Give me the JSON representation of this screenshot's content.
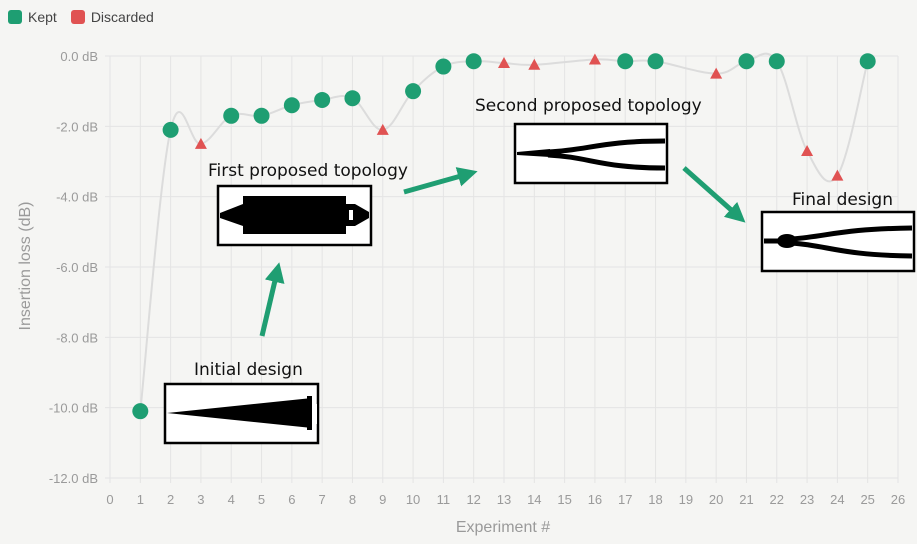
{
  "legend": {
    "kept_label": "Kept",
    "discarded_label": "Discarded"
  },
  "colors": {
    "kept": "#1e9e72",
    "discarded": "#e05252",
    "line": "#dcdcdc",
    "arrow": "#1f9e72",
    "grid": "#e4e4e4",
    "axis_text": "#9a9a9a"
  },
  "chart_data": {
    "type": "scatter",
    "xlabel": "Experiment #",
    "ylabel": "Insertion loss (dB)",
    "xlim": [
      0,
      26
    ],
    "ylim": [
      -12,
      0
    ],
    "x_ticks": [
      "0",
      "1",
      "2",
      "3",
      "4",
      "5",
      "6",
      "7",
      "8",
      "9",
      "10",
      "11",
      "12",
      "13",
      "14",
      "15",
      "16",
      "17",
      "18",
      "19",
      "20",
      "21",
      "22",
      "23",
      "24",
      "25",
      "26"
    ],
    "y_ticks": [
      "0.0 dB",
      "-2.0 dB",
      "-4.0 dB",
      "-6.0 dB",
      "-8.0 dB",
      "-10.0 dB",
      "-12.0 dB"
    ],
    "series": [
      {
        "name": "Kept",
        "marker": "circle",
        "points": [
          [
            1,
            -10.1
          ],
          [
            2,
            -2.1
          ],
          [
            4,
            -1.7
          ],
          [
            5,
            -1.7
          ],
          [
            6,
            -1.4
          ],
          [
            7,
            -1.25
          ],
          [
            8,
            -1.2
          ],
          [
            10,
            -1.0
          ],
          [
            11,
            -0.3
          ],
          [
            12,
            -0.15
          ],
          [
            17,
            -0.15
          ],
          [
            18,
            -0.15
          ],
          [
            21,
            -0.15
          ],
          [
            22,
            -0.15
          ],
          [
            25,
            -0.15
          ]
        ]
      },
      {
        "name": "Discarded",
        "marker": "triangle",
        "points": [
          [
            3,
            -2.5
          ],
          [
            9,
            -2.1
          ],
          [
            13,
            -0.2
          ],
          [
            14,
            -0.25
          ],
          [
            16,
            -0.1
          ],
          [
            20,
            -0.5
          ],
          [
            23,
            -2.7
          ],
          [
            24,
            -3.4
          ]
        ]
      }
    ],
    "line_sequence": [
      1,
      2,
      3,
      4,
      5,
      6,
      7,
      8,
      9,
      10,
      11,
      12,
      13,
      14,
      16,
      17,
      18,
      20,
      21,
      22,
      23,
      24,
      25
    ],
    "annotations": [
      {
        "label": "Initial design"
      },
      {
        "label": "First proposed topology"
      },
      {
        "label": "Second proposed topology"
      },
      {
        "label": "Final design"
      }
    ]
  }
}
